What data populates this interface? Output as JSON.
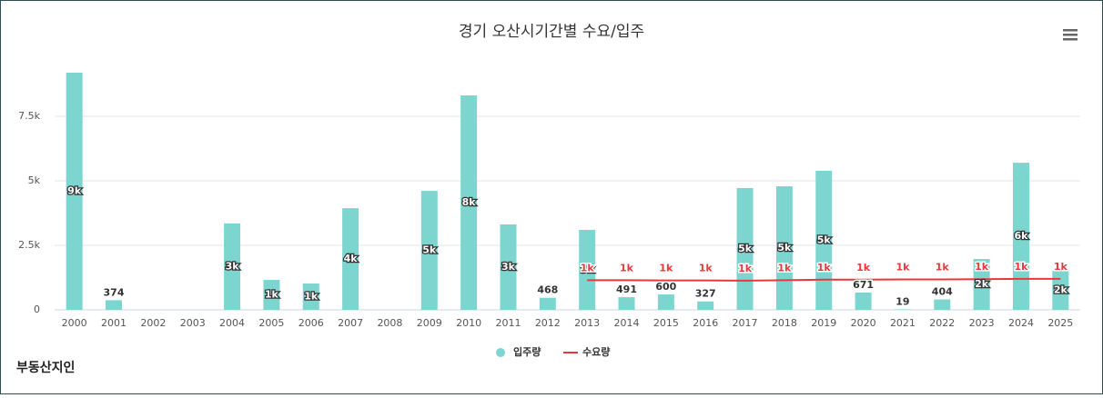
{
  "chart_data": {
    "type": "bar",
    "title": "경기 오산시기간별 수요/입주",
    "categories": [
      "2000",
      "2001",
      "2002",
      "2003",
      "2004",
      "2005",
      "2006",
      "2007",
      "2008",
      "2009",
      "2010",
      "2011",
      "2012",
      "2013",
      "2014",
      "2015",
      "2016",
      "2017",
      "2018",
      "2019",
      "2020",
      "2021",
      "2022",
      "2023",
      "2024",
      "2025"
    ],
    "series": [
      {
        "name": "입주량",
        "type": "bar",
        "color": "#7dd5cf",
        "values": [
          9190,
          374,
          null,
          null,
          3350,
          1160,
          1020,
          3940,
          null,
          4610,
          8310,
          3310,
          468,
          3100,
          491,
          600,
          327,
          4720,
          4790,
          5390,
          671,
          19,
          404,
          1970,
          5700,
          1510
        ],
        "value_labels": [
          "9k",
          "374",
          null,
          null,
          "3k",
          "1k",
          "1k",
          "4k",
          null,
          "5k",
          "8k",
          "3k",
          "468",
          "3k",
          "491",
          "600",
          "327",
          "5k",
          "5k",
          "5k",
          "671",
          "19",
          "404",
          "2k",
          "6k",
          "2k"
        ]
      },
      {
        "name": "수요량",
        "type": "line",
        "color": "#e8383d",
        "values": [
          null,
          null,
          null,
          null,
          null,
          null,
          null,
          null,
          null,
          null,
          null,
          null,
          null,
          1150,
          1150,
          1140,
          1140,
          1130,
          1150,
          1170,
          1170,
          1180,
          1180,
          1190,
          1200,
          1200
        ],
        "value_labels": [
          null,
          null,
          null,
          null,
          null,
          null,
          null,
          null,
          null,
          null,
          null,
          null,
          null,
          "1k",
          "1k",
          "1k",
          "1k",
          "1k",
          "1k",
          "1k",
          "1k",
          "1k",
          "1k",
          "1k",
          "1k",
          "1k"
        ]
      }
    ],
    "ylim": [
      0,
      10000
    ],
    "yticks": [
      0,
      {
        "value": 2500,
        "label": "2.5k"
      },
      {
        "value": 5000,
        "label": "5k"
      },
      {
        "value": 7500,
        "label": "7.5k"
      }
    ],
    "grid": true,
    "legend": "bottom",
    "logo": "부동산지인"
  }
}
